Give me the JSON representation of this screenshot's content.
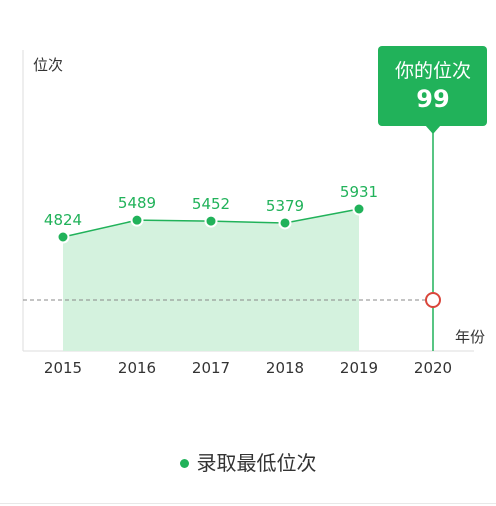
{
  "chart_data": {
    "type": "line",
    "ylabel": "位次",
    "xlabel": "年份",
    "categories": [
      "2015",
      "2016",
      "2017",
      "2018",
      "2019",
      "2020"
    ],
    "series": [
      {
        "name": "录取最低位次",
        "x": [
          "2015",
          "2016",
          "2017",
          "2018",
          "2019"
        ],
        "values": [
          4824,
          5489,
          5452,
          5379,
          5931
        ],
        "fill": "area"
      }
    ],
    "your_rank": {
      "label": "你的位次",
      "x": "2020",
      "value": 99
    },
    "colors": {
      "line": "#21b25a",
      "area": "#d4f2de",
      "callout": "#21b25a",
      "marker_ring": "#d9463b",
      "reference_line": "#888888"
    },
    "legend": {
      "position": "bottom-center"
    },
    "grid": false
  }
}
